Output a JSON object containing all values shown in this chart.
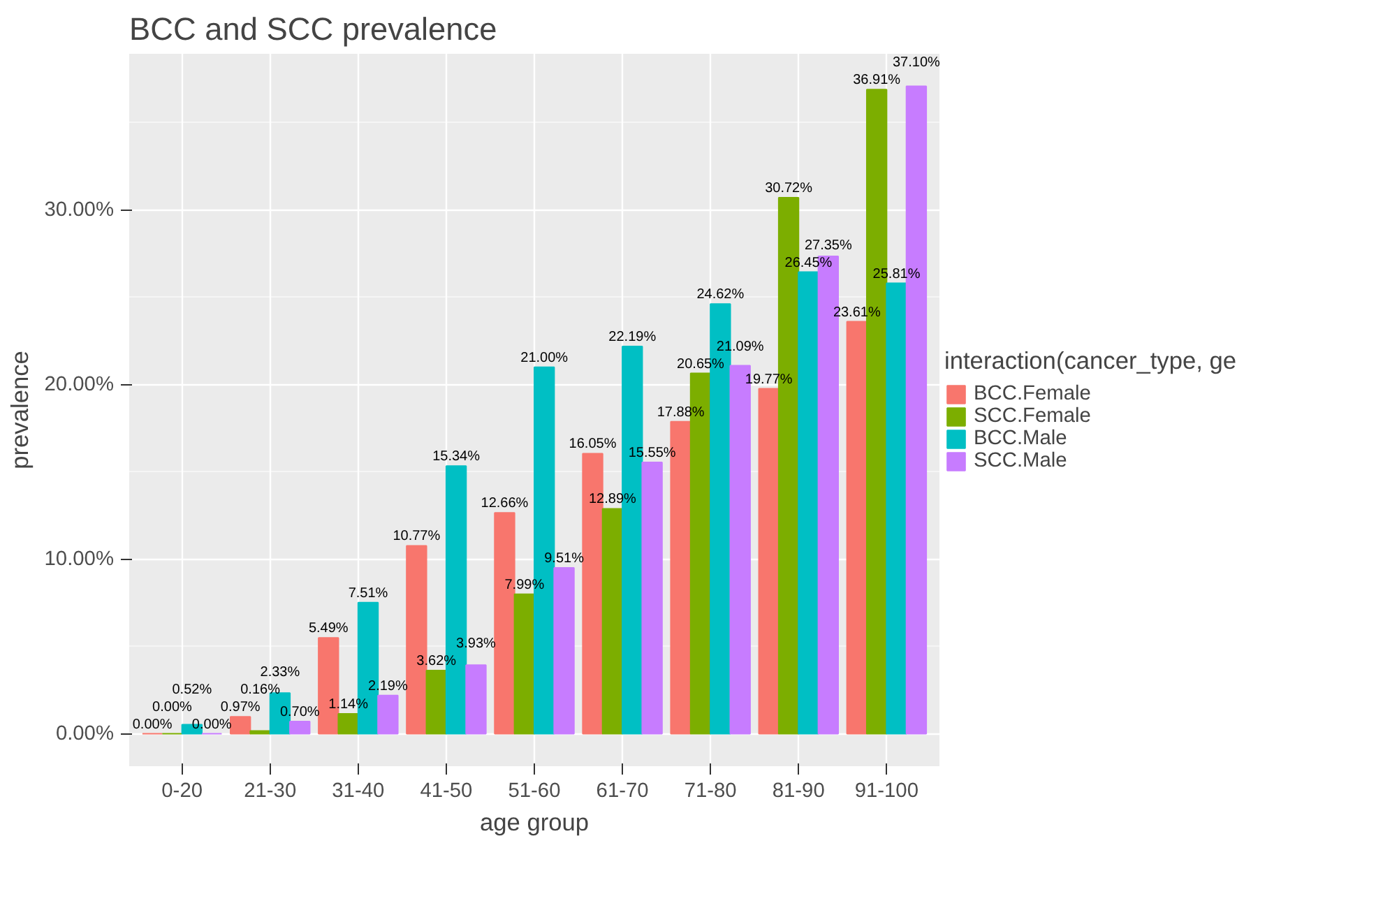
{
  "chart_data": {
    "type": "bar",
    "title": "BCC and SCC prevalence",
    "xlabel": "age group",
    "ylabel": "prevalence",
    "legend_title": "interaction(cancer_type, ge",
    "categories": [
      "0-20",
      "21-30",
      "31-40",
      "41-50",
      "51-60",
      "61-70",
      "71-80",
      "81-90",
      "91-100"
    ],
    "series": [
      {
        "name": "BCC.Female",
        "color": "#f8766d",
        "values": [
          0.0,
          0.97,
          5.49,
          10.77,
          12.66,
          16.05,
          17.88,
          19.77,
          23.61
        ],
        "value_labels": [
          "0.00%",
          "0.97%",
          "5.49%",
          "10.77%",
          "12.66%",
          "16.05%",
          "17.88%",
          "19.77%",
          "23.61%"
        ]
      },
      {
        "name": "SCC.Female",
        "color": "#7cae00",
        "values": [
          0.0,
          0.16,
          1.14,
          3.62,
          7.99,
          12.89,
          20.65,
          30.72,
          36.91
        ],
        "value_labels": [
          "0.00%",
          "0.16%",
          "1.14%",
          "3.62%",
          "7.99%",
          "12.89%",
          "20.65%",
          "30.72%",
          "36.91%"
        ]
      },
      {
        "name": "BCC.Male",
        "color": "#00bfc4",
        "values": [
          0.52,
          2.33,
          7.51,
          15.34,
          21.0,
          22.19,
          24.62,
          26.45,
          25.81
        ],
        "value_labels": [
          "0.52%",
          "2.33%",
          "7.51%",
          "15.34%",
          "21.00%",
          "22.19%",
          "24.62%",
          "26.45%",
          "25.81%"
        ]
      },
      {
        "name": "SCC.Male",
        "color": "#c77cff",
        "values": [
          0.0,
          0.7,
          2.19,
          3.93,
          9.51,
          15.55,
          21.09,
          27.35,
          37.1
        ],
        "value_labels": [
          "0.00%",
          "0.70%",
          "2.19%",
          "3.93%",
          "9.51%",
          "15.55%",
          "21.09%",
          "27.35%",
          "37.10%"
        ]
      }
    ],
    "ylim": [
      -1.86,
      38.96
    ],
    "yticks": [
      {
        "value": 0,
        "label": "0.00%"
      },
      {
        "value": 10,
        "label": "10.00%"
      },
      {
        "value": 20,
        "label": "20.00%"
      },
      {
        "value": 30,
        "label": "30.00%"
      }
    ],
    "grid": true,
    "legend": "right"
  }
}
